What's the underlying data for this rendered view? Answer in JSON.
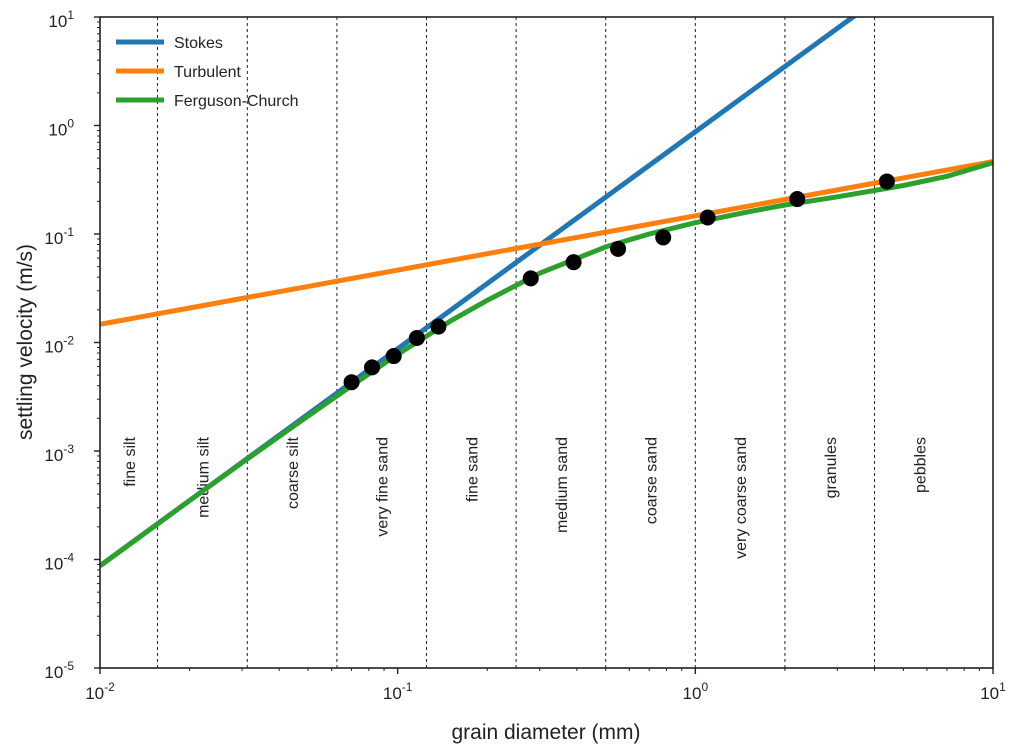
{
  "chart_data": {
    "type": "line",
    "title": "",
    "xlabel": "grain diameter (mm)",
    "ylabel": "settling velocity (m/s)",
    "xscale": "log",
    "yscale": "log",
    "xlim": [
      0.01,
      10
    ],
    "ylim": [
      1e-05,
      10
    ],
    "x_ticks": [
      {
        "base": "10",
        "exp": "-2"
      },
      {
        "base": "10",
        "exp": "-1"
      },
      {
        "base": "10",
        "exp": "0"
      },
      {
        "base": "10",
        "exp": "1"
      }
    ],
    "y_ticks": [
      {
        "base": "10",
        "exp": "-5"
      },
      {
        "base": "10",
        "exp": "-4"
      },
      {
        "base": "10",
        "exp": "-3"
      },
      {
        "base": "10",
        "exp": "-2"
      },
      {
        "base": "10",
        "exp": "-1"
      },
      {
        "base": "10",
        "exp": "0"
      },
      {
        "base": "10",
        "exp": "1"
      }
    ],
    "legend_position": "top-left",
    "grid": false,
    "series": [
      {
        "name": "Stokes",
        "color": "#1f77b4",
        "x": [
          0.01,
          0.02,
          0.05,
          0.1,
          0.2,
          0.5,
          1,
          2,
          3.6
        ],
        "y": [
          8.75e-05,
          0.00035,
          0.00219,
          0.00875,
          0.035,
          0.219,
          0.875,
          3.5,
          11.3
        ]
      },
      {
        "name": "Turbulent",
        "color": "#ff7f0e",
        "x": [
          0.01,
          0.02,
          0.05,
          0.1,
          0.2,
          0.5,
          1,
          2,
          5,
          10
        ],
        "y": [
          0.0147,
          0.0208,
          0.0329,
          0.0465,
          0.0658,
          0.104,
          0.147,
          0.208,
          0.329,
          0.465
        ]
      },
      {
        "name": "Ferguson-Church",
        "color": "#2ca02c",
        "x": [
          0.01,
          0.02,
          0.03,
          0.05,
          0.07,
          0.1,
          0.15,
          0.2,
          0.3,
          0.5,
          0.7,
          1,
          1.5,
          2,
          3,
          5,
          7,
          10
        ],
        "y": [
          8.75e-05,
          0.00035,
          0.00078,
          0.0021,
          0.004,
          0.0078,
          0.0157,
          0.0245,
          0.0435,
          0.076,
          0.1,
          0.127,
          0.16,
          0.185,
          0.22,
          0.28,
          0.34,
          0.455
        ]
      }
    ],
    "points": {
      "name": "",
      "color": "#000000",
      "x": [
        0.07,
        0.082,
        0.097,
        0.116,
        0.137,
        0.28,
        0.39,
        0.55,
        0.78,
        1.1,
        2.2,
        4.4
      ],
      "y": [
        0.0043,
        0.0059,
        0.0075,
        0.011,
        0.014,
        0.039,
        0.055,
        0.073,
        0.093,
        0.142,
        0.21,
        0.305
      ]
    },
    "class_boundaries": [
      0.0156,
      0.03125,
      0.0625,
      0.125,
      0.25,
      0.5,
      1,
      2,
      4
    ],
    "classes": [
      {
        "label": "fine silt",
        "x": 0.0125
      },
      {
        "label": "medium silt",
        "x": 0.0221
      },
      {
        "label": "coarse silt",
        "x": 0.0442
      },
      {
        "label": "very fine sand",
        "x": 0.0884
      },
      {
        "label": "fine sand",
        "x": 0.177
      },
      {
        "label": "medium sand",
        "x": 0.354
      },
      {
        "label": "coarse sand",
        "x": 0.707
      },
      {
        "label": "very coarse sand",
        "x": 1.414
      },
      {
        "label": "granules",
        "x": 2.83
      },
      {
        "label": "pebbles",
        "x": 5.66
      }
    ]
  }
}
